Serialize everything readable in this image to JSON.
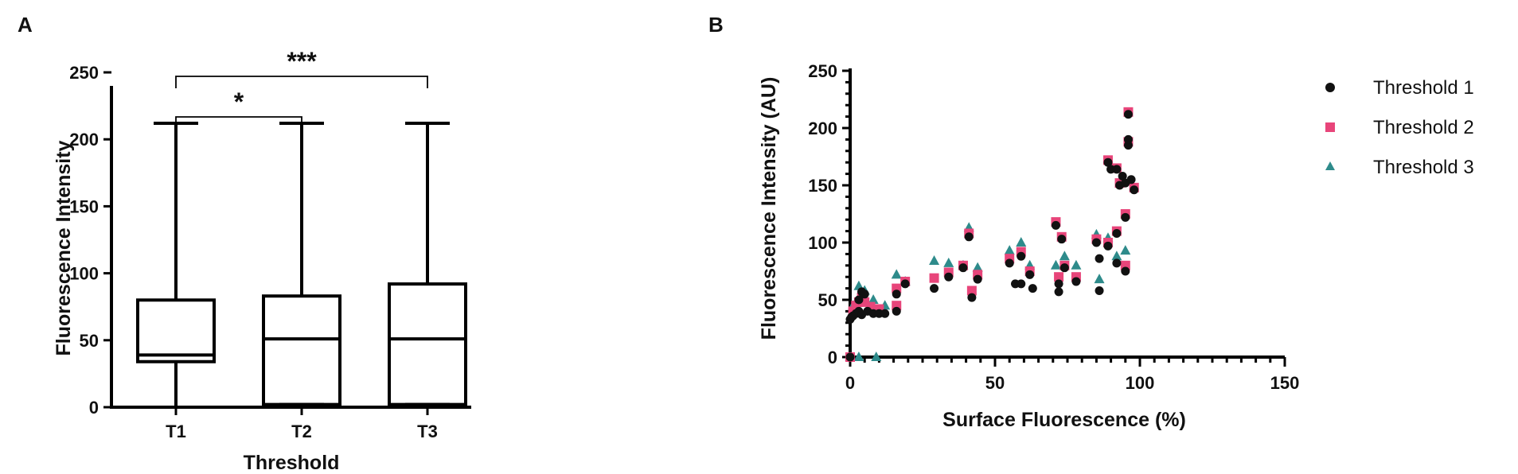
{
  "chart_data": [
    {
      "panel_label": "A",
      "type": "box",
      "xlabel": "Threshold",
      "ylabel": "Fluorescence Intensity",
      "ylim": [
        0,
        250
      ],
      "yticks": [
        "0",
        "50",
        "100",
        "150",
        "200",
        "250"
      ],
      "categories": [
        "T1",
        "T2",
        "T3"
      ],
      "boxes": [
        {
          "name": "T1",
          "min": 0,
          "q1": 34,
          "median": 39,
          "q3": 80,
          "max": 212
        },
        {
          "name": "T2",
          "min": 2,
          "q1": 2,
          "median": 51,
          "q3": 83,
          "max": 212
        },
        {
          "name": "T3",
          "min": 2,
          "q1": 2,
          "median": 51,
          "q3": 92,
          "max": 212
        }
      ],
      "significance": [
        {
          "from": "T1",
          "to": "T2",
          "label": "*"
        },
        {
          "from": "T1",
          "to": "T3",
          "label": "***"
        }
      ]
    },
    {
      "panel_label": "B",
      "type": "scatter",
      "xlabel": "Surface Fluorescence (%)",
      "ylabel": "Fluorescence Intensity (AU)",
      "xlim": [
        0,
        150
      ],
      "ylim": [
        0,
        250
      ],
      "xticks": [
        "0",
        "50",
        "100",
        "150"
      ],
      "yticks": [
        "0",
        "50",
        "100",
        "150",
        "200",
        "250"
      ],
      "legend_position": "right",
      "series": [
        {
          "name": "Threshold 1",
          "marker": "circle",
          "color": "#111111",
          "points": [
            [
              0,
              0
            ],
            [
              0,
              33
            ],
            [
              0.5,
              35
            ],
            [
              1,
              36
            ],
            [
              2,
              38
            ],
            [
              3,
              40
            ],
            [
              3,
              50
            ],
            [
              4,
              37
            ],
            [
              4,
              57
            ],
            [
              5,
              55
            ],
            [
              6,
              40
            ],
            [
              8,
              38
            ],
            [
              10,
              38
            ],
            [
              12,
              38
            ],
            [
              16,
              40
            ],
            [
              16,
              55
            ],
            [
              19,
              64
            ],
            [
              29,
              60
            ],
            [
              34,
              70
            ],
            [
              39,
              78
            ],
            [
              41,
              105
            ],
            [
              42,
              52
            ],
            [
              44,
              68
            ],
            [
              55,
              82
            ],
            [
              57,
              64
            ],
            [
              59,
              64
            ],
            [
              59,
              88
            ],
            [
              62,
              72
            ],
            [
              63,
              60
            ],
            [
              71,
              115
            ],
            [
              72,
              64
            ],
            [
              72,
              57
            ],
            [
              73,
              103
            ],
            [
              74,
              78
            ],
            [
              78,
              66
            ],
            [
              85,
              100
            ],
            [
              86,
              58
            ],
            [
              86,
              86
            ],
            [
              89,
              97
            ],
            [
              89,
              170
            ],
            [
              90,
              164
            ],
            [
              92,
              164
            ],
            [
              92,
              108
            ],
            [
              92,
              82
            ],
            [
              93,
              150
            ],
            [
              94,
              158
            ],
            [
              95,
              152
            ],
            [
              95,
              75
            ],
            [
              95,
              122
            ],
            [
              96,
              185
            ],
            [
              96,
              190
            ],
            [
              96,
              212
            ],
            [
              97,
              155
            ],
            [
              98,
              146
            ]
          ]
        },
        {
          "name": "Threshold 2",
          "marker": "square",
          "color": "#e8457a",
          "points": [
            [
              0,
              0
            ],
            [
              1,
              40
            ],
            [
              2,
              45
            ],
            [
              3,
              48
            ],
            [
              4,
              52
            ],
            [
              5,
              48
            ],
            [
              7,
              44
            ],
            [
              10,
              42
            ],
            [
              16,
              45
            ],
            [
              16,
              60
            ],
            [
              19,
              66
            ],
            [
              29,
              69
            ],
            [
              34,
              74
            ],
            [
              39,
              80
            ],
            [
              41,
              108
            ],
            [
              42,
              58
            ],
            [
              44,
              72
            ],
            [
              55,
              86
            ],
            [
              59,
              92
            ],
            [
              62,
              75
            ],
            [
              71,
              118
            ],
            [
              72,
              70
            ],
            [
              73,
              105
            ],
            [
              74,
              80
            ],
            [
              78,
              70
            ],
            [
              85,
              103
            ],
            [
              89,
              100
            ],
            [
              89,
              172
            ],
            [
              92,
              165
            ],
            [
              92,
              110
            ],
            [
              93,
              152
            ],
            [
              95,
              80
            ],
            [
              95,
              125
            ],
            [
              96,
              188
            ],
            [
              96,
              214
            ],
            [
              98,
              148
            ]
          ]
        },
        {
          "name": "Threshold 3",
          "marker": "triangle",
          "color": "#2e8b8b",
          "points": [
            [
              0,
              0
            ],
            [
              3,
              0
            ],
            [
              9,
              0
            ],
            [
              1,
              45
            ],
            [
              3,
              62
            ],
            [
              5,
              58
            ],
            [
              8,
              50
            ],
            [
              12,
              45
            ],
            [
              16,
              72
            ],
            [
              19,
              66
            ],
            [
              29,
              84
            ],
            [
              34,
              82
            ],
            [
              39,
              80
            ],
            [
              41,
              113
            ],
            [
              44,
              78
            ],
            [
              55,
              93
            ],
            [
              59,
              100
            ],
            [
              62,
              80
            ],
            [
              71,
              80
            ],
            [
              74,
              88
            ],
            [
              78,
              80
            ],
            [
              85,
              107
            ],
            [
              86,
              68
            ],
            [
              89,
              104
            ],
            [
              92,
              88
            ],
            [
              95,
              93
            ]
          ]
        }
      ]
    }
  ]
}
